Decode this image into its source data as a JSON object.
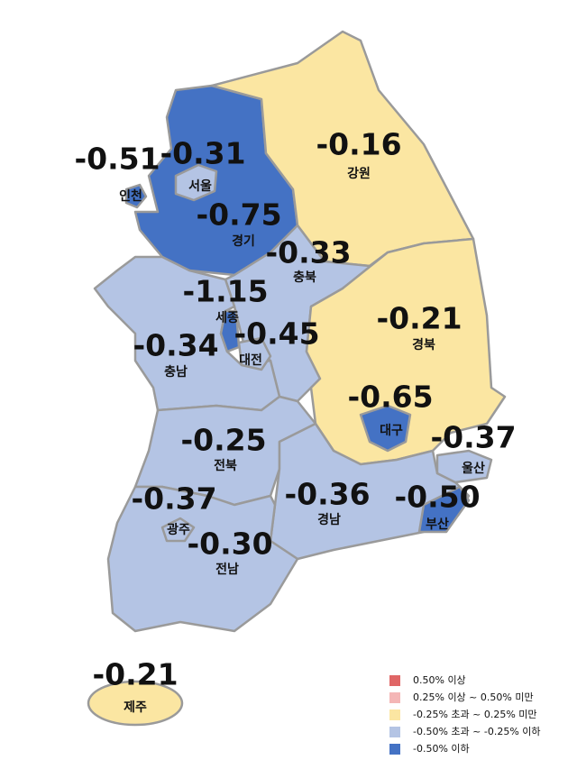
{
  "map": {
    "regions": [
      {
        "name": "인천",
        "value": "-0.51",
        "color": "#4472c4"
      },
      {
        "name": "서울",
        "value": "-0.31",
        "color": "#b4c4e4"
      },
      {
        "name": "경기",
        "value": "-0.75",
        "color": "#4472c4"
      },
      {
        "name": "강원",
        "value": "-0.16",
        "color": "#fbe6a2"
      },
      {
        "name": "충북",
        "value": "-0.33",
        "color": "#b4c4e4"
      },
      {
        "name": "경북",
        "value": "-0.21",
        "color": "#fbe6a2"
      },
      {
        "name": "충남",
        "value": "-0.34",
        "color": "#b4c4e4"
      },
      {
        "name": "세종",
        "value": "-1.15",
        "color": "#4472c4"
      },
      {
        "name": "대전",
        "value": "-0.45",
        "color": "#b4c4e4"
      },
      {
        "name": "대구",
        "value": "-0.65",
        "color": "#4472c4"
      },
      {
        "name": "울산",
        "value": "-0.37",
        "color": "#b4c4e4"
      },
      {
        "name": "경남",
        "value": "-0.36",
        "color": "#b4c4e4"
      },
      {
        "name": "부산",
        "value": "-0.50",
        "color": "#4472c4"
      },
      {
        "name": "전북",
        "value": "-0.25",
        "color": "#b4c4e4"
      },
      {
        "name": "전남",
        "value": "-0.30",
        "color": "#b4c4e4"
      },
      {
        "name": "광주",
        "value": "-0.37",
        "color": "#b4c4e4"
      },
      {
        "name": "제주",
        "value": "-0.21",
        "color": "#fbe6a2"
      }
    ],
    "legend": [
      {
        "label": "0.50% 이상",
        "color": "#e06666"
      },
      {
        "label": "0.25% 이상 ~ 0.50% 미만",
        "color": "#f4b6b6"
      },
      {
        "label": "-0.25% 초과 ~ 0.25% 미만",
        "color": "#fbe6a2"
      },
      {
        "label": "-0.50% 초과 ~ -0.25% 이하",
        "color": "#b4c4e4"
      },
      {
        "label": "-0.50% 이하",
        "color": "#4472c4"
      }
    ]
  }
}
